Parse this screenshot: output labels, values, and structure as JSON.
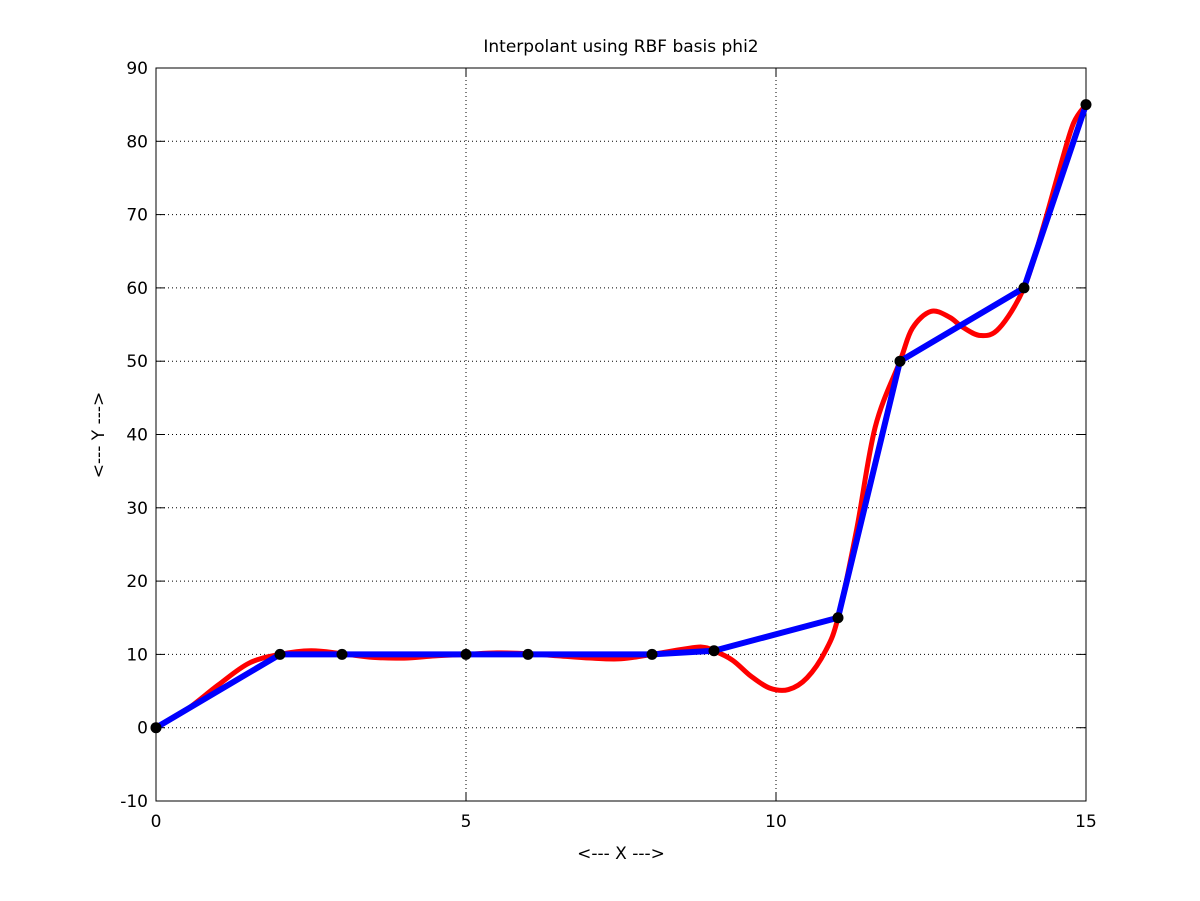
{
  "chart_data": {
    "type": "line",
    "title": "Interpolant using RBF basis phi2",
    "xlabel": "<--- X --->",
    "ylabel": "<--- Y --->",
    "xlim": [
      0,
      15
    ],
    "ylim": [
      -10,
      90
    ],
    "xticks": [
      0,
      5,
      10,
      15
    ],
    "yticks": [
      -10,
      0,
      10,
      20,
      30,
      40,
      50,
      60,
      70,
      80,
      90
    ],
    "grid": true,
    "legend": "none",
    "colors": {
      "interpolant": "#ff0000",
      "linear": "#0000ff",
      "points": "#000000"
    },
    "series": [
      {
        "style": "red-curve",
        "x": [
          0,
          0.5,
          1,
          1.5,
          2,
          2.5,
          3,
          3.5,
          4,
          4.5,
          5,
          5.5,
          6,
          6.5,
          7,
          7.5,
          8,
          8.5,
          8.8,
          9,
          9.3,
          9.6,
          9.9,
          10.2,
          10.5,
          10.8,
          11,
          11.3,
          11.6,
          12,
          12.2,
          12.5,
          12.8,
          13,
          13.3,
          13.6,
          14,
          14.3,
          14.6,
          14.8,
          15
        ],
        "y": [
          0,
          2.5,
          5.8,
          8.8,
          10,
          10.5,
          10.1,
          9.6,
          9.5,
          9.8,
          10,
          10.2,
          10.1,
          9.8,
          9.5,
          9.4,
          10,
          10.7,
          11,
          10.5,
          9.2,
          7,
          5.4,
          5.2,
          6.8,
          10.5,
          15,
          27,
          41,
          50,
          54.5,
          56.8,
          56,
          54.7,
          53.5,
          54.5,
          60,
          68,
          77,
          82.5,
          85
        ]
      },
      {
        "style": "blue-linear",
        "x": [
          0,
          2,
          3,
          5,
          6,
          8,
          9,
          11,
          12,
          14,
          15
        ],
        "y": [
          0,
          10,
          10,
          10,
          10,
          10,
          10.5,
          15,
          50,
          60,
          85
        ]
      }
    ],
    "points": {
      "x": [
        0,
        2,
        3,
        5,
        6,
        8,
        9,
        11,
        12,
        14,
        15
      ],
      "y": [
        0,
        10,
        10,
        10,
        10,
        10,
        10.5,
        15,
        50,
        60,
        85
      ]
    }
  }
}
